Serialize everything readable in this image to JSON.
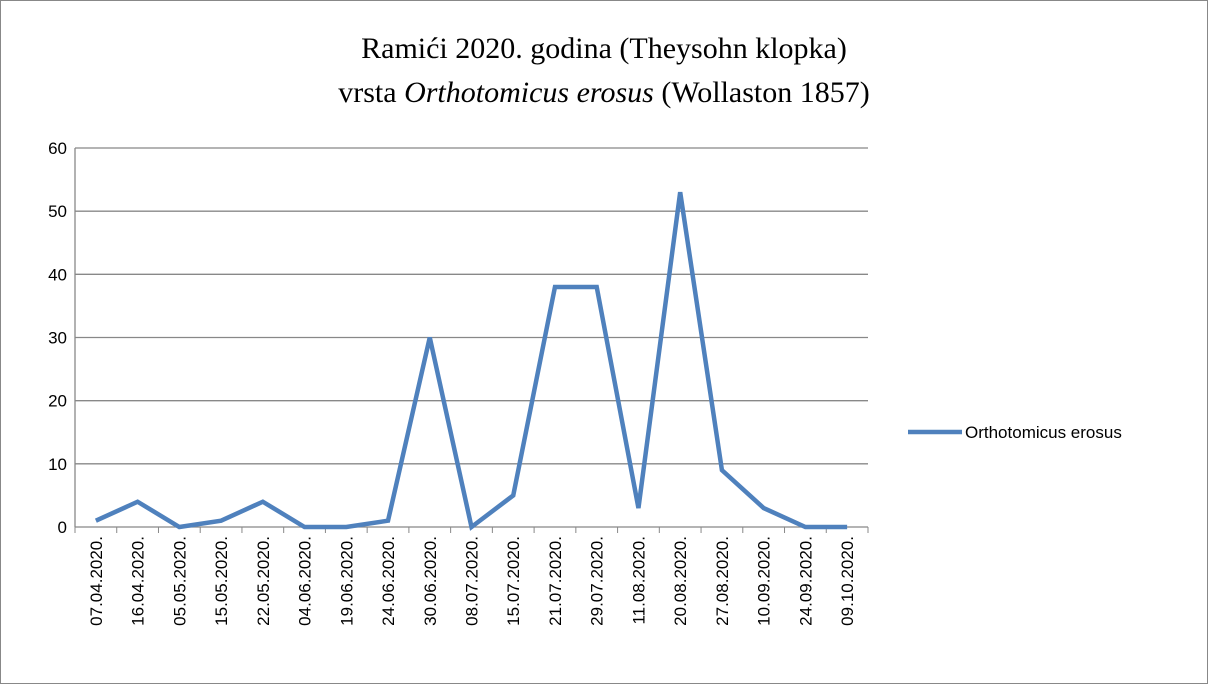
{
  "chart_data": {
    "type": "line",
    "title": [
      [
        "Ramići 2020. godina (Theysohn klopka)"
      ],
      [
        "vrsta ",
        "Orthotomicus erosus",
        " (Wollaston 1857)"
      ]
    ],
    "categories": [
      "07.04.2020.",
      "16.04.2020.",
      "05.05.2020.",
      "15.05.2020.",
      "22.05.2020.",
      "04.06.2020.",
      "19.06.2020.",
      "24.06.2020.",
      "30.06.2020.",
      "08.07.2020.",
      "15.07.2020.",
      "21.07.2020.",
      "29.07.2020.",
      "11.08.2020.",
      "20.08.2020.",
      "27.08.2020.",
      "10.09.2020.",
      "24.09.2020.",
      "09.10.2020."
    ],
    "series": [
      {
        "name": "Orthotomicus erosus",
        "color": "#4f81bd",
        "values": [
          1,
          4,
          0,
          1,
          4,
          0,
          0,
          1,
          30,
          0,
          5,
          38,
          38,
          3,
          53,
          9,
          3,
          0,
          0
        ]
      }
    ],
    "ylim": [
      0,
      60
    ],
    "yticks": [
      0,
      10,
      20,
      30,
      40,
      50,
      60
    ],
    "grid": true,
    "legend": "right"
  }
}
